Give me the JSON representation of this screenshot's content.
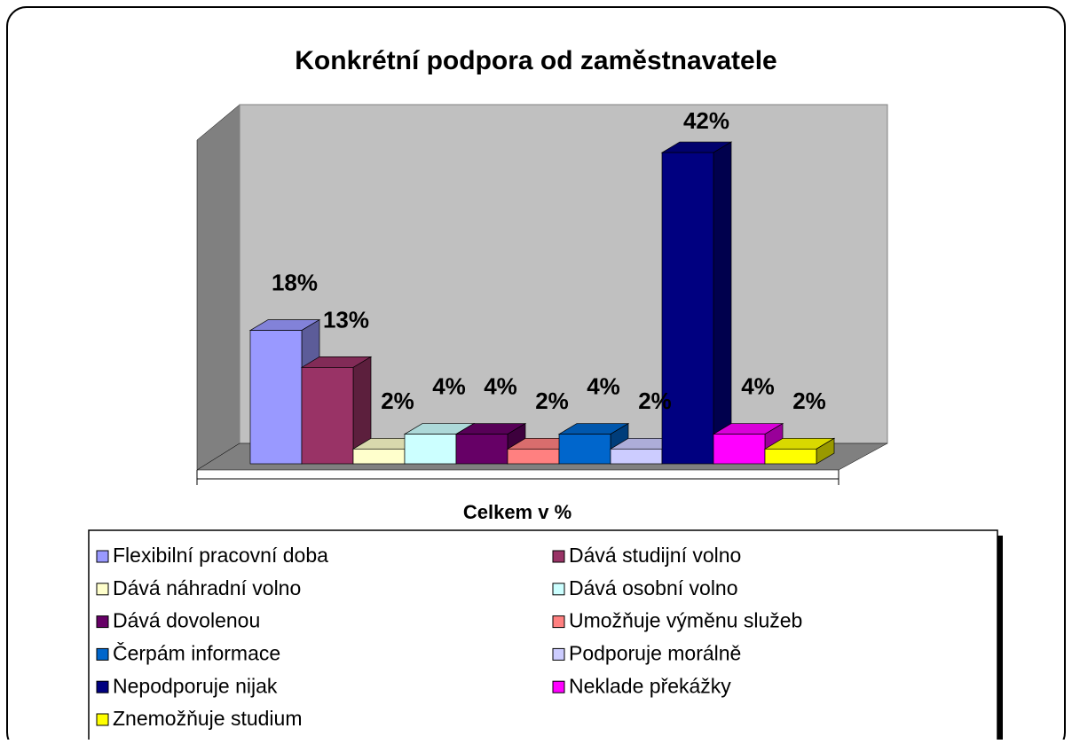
{
  "chart_data": {
    "type": "bar3d",
    "title": "Konkrétní podpora od zaměstnavatele",
    "categories": [
      "Celkem v %"
    ],
    "ylim": [
      0,
      45
    ],
    "series": [
      {
        "name": "Flexibilní pracovní doba",
        "color": "#9999ff",
        "values": [
          18
        ],
        "value_labels": [
          "18%"
        ]
      },
      {
        "name": "Dává studijní volno",
        "color": "#993366",
        "values": [
          13
        ],
        "value_labels": [
          "13%"
        ]
      },
      {
        "name": "Dává náhradní volno",
        "color": "#ffffcc",
        "values": [
          2
        ],
        "value_labels": [
          "2%"
        ]
      },
      {
        "name": "Dává osobní volno",
        "color": "#ccffff",
        "values": [
          4
        ],
        "value_labels": [
          "4%"
        ]
      },
      {
        "name": "Dává dovolenou",
        "color": "#660066",
        "values": [
          4
        ],
        "value_labels": [
          "4%"
        ]
      },
      {
        "name": "Umožňuje výměnu služeb",
        "color": "#ff8080",
        "values": [
          2
        ],
        "value_labels": [
          "2%"
        ]
      },
      {
        "name": "Čerpám informace",
        "color": "#0066cc",
        "values": [
          4
        ],
        "value_labels": [
          "4%"
        ]
      },
      {
        "name": "Podporuje morálně",
        "color": "#ccccff",
        "values": [
          2
        ],
        "value_labels": [
          "2%"
        ]
      },
      {
        "name": "Nepodporuje nijak",
        "color": "#000080",
        "values": [
          42
        ],
        "value_labels": [
          "42%"
        ]
      },
      {
        "name": "Neklade překážky",
        "color": "#ff00ff",
        "values": [
          4
        ],
        "value_labels": [
          "4%"
        ]
      },
      {
        "name": "Znemožňuje studium",
        "color": "#ffff00",
        "values": [
          2
        ],
        "value_labels": [
          "2%"
        ]
      }
    ],
    "legend": "bottom"
  }
}
